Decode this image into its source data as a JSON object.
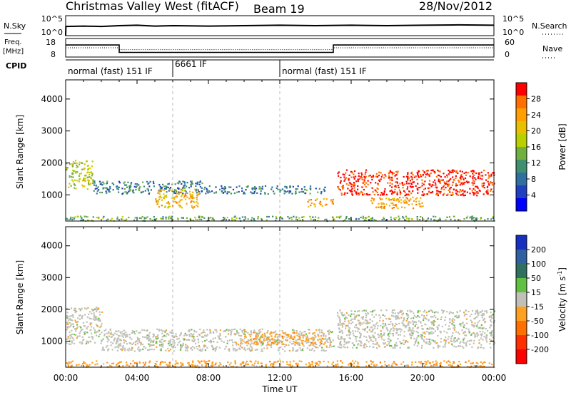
{
  "header": {
    "station_title": "Christmas Valley West (fitACF)",
    "beam": "Beam 19",
    "date": "28/Nov/2012"
  },
  "noise_panel": {
    "label": "N.Sky",
    "right_label": "N.Search",
    "yticks_left": [
      "10^5",
      "10^0"
    ],
    "yticks_right": [
      "10^5",
      "10^0"
    ]
  },
  "freq_panel": {
    "label_line1": "Freq.",
    "label_line2": "[MHz]",
    "right_label": "Nave",
    "yticks_left": [
      "18",
      "8"
    ],
    "yticks_right": [
      "60",
      "0"
    ]
  },
  "cpid": {
    "label": "CPID",
    "segments": [
      {
        "start": 0,
        "end": 6,
        "text": "normal (fast) 151 IF"
      },
      {
        "start": 6,
        "end": 12,
        "text": "6661 IF"
      },
      {
        "start": 12,
        "end": 24,
        "text": "normal (fast) 151 IF"
      }
    ]
  },
  "power_colorbar": {
    "label": "Power [dB]",
    "ticks": [
      "28",
      "24",
      "20",
      "16",
      "12",
      "8",
      "4"
    ],
    "colors": [
      "#ff0000",
      "#ff7000",
      "#ffa000",
      "#e8c000",
      "#b8d000",
      "#70b040",
      "#409070",
      "#3070a0",
      "#2040c0",
      "#0000ff"
    ]
  },
  "velocity_colorbar": {
    "label_main": "Velocity [m s",
    "label_sup": "-1",
    "label_end": "]",
    "ticks": [
      "200",
      "100",
      "50",
      "15",
      "-15",
      "-50",
      "-100",
      "-200"
    ],
    "colors": [
      "#1830c0",
      "#3060a0",
      "#307060",
      "#60c040",
      "#c0c0b8",
      "#ffa020",
      "#ff7000",
      "#ff3000",
      "#ff0000"
    ]
  },
  "chart_data": [
    {
      "type": "line",
      "title": "N.Sky / N.Search",
      "x": [
        0,
        0.01,
        1,
        2,
        3,
        4,
        5,
        6,
        8,
        10,
        12,
        14,
        16,
        18,
        20,
        22,
        24
      ],
      "series": [
        {
          "name": "N.Sky",
          "values": [
            0,
            2.3,
            2.4,
            2.3,
            2.5,
            2.6,
            2.4,
            2.5,
            2.4,
            2.5,
            2.6,
            2.5,
            2.6,
            2.5,
            2.6,
            2.7,
            2.6
          ]
        }
      ],
      "xlim": [
        0,
        24
      ],
      "ylim": [
        0,
        5
      ],
      "yscale": "log"
    },
    {
      "type": "line",
      "title": "Freq. [MHz]",
      "x": [
        0,
        3,
        3,
        15,
        15,
        24
      ],
      "series": [
        {
          "name": "Freq.",
          "values": [
            14.5,
            14.5,
            10.5,
            10.5,
            14.5,
            14.5
          ]
        },
        {
          "name": "Nave",
          "values": [
            30,
            30,
            24,
            24,
            30,
            30
          ]
        }
      ],
      "xlim": [
        0,
        24
      ],
      "ylim": [
        8,
        18
      ],
      "ylim_right": [
        0,
        60
      ]
    },
    {
      "type": "heatmap",
      "title": "Power",
      "xlabel": "",
      "ylabel": "Slant Range [km]",
      "xlim": [
        0,
        24
      ],
      "ylim": [
        180,
        4600
      ],
      "yticks": [
        1000,
        2000,
        3000,
        4000
      ],
      "features": [
        {
          "x": [
            0.0,
            1.5
          ],
          "y": [
            1200,
            2100
          ],
          "level": 16
        },
        {
          "x": [
            1.5,
            8.0
          ],
          "y": [
            1050,
            1450
          ],
          "level": 8
        },
        {
          "x": [
            5.0,
            7.5
          ],
          "y": [
            600,
            1200
          ],
          "level": 20
        },
        {
          "x": [
            8.0,
            14.5
          ],
          "y": [
            1050,
            1300
          ],
          "level": 8
        },
        {
          "x": [
            13.5,
            15.0
          ],
          "y": [
            650,
            900
          ],
          "level": 22
        },
        {
          "x": [
            15.2,
            24.0
          ],
          "y": [
            1000,
            1800
          ],
          "level": 28
        },
        {
          "x": [
            17.0,
            20.0
          ],
          "y": [
            600,
            950
          ],
          "level": 22
        },
        {
          "x": [
            0.0,
            24.0
          ],
          "y": [
            200,
            350
          ],
          "level": 12
        }
      ]
    },
    {
      "type": "heatmap",
      "title": "Velocity",
      "xlabel": "Time UT",
      "ylabel": "Slant Range [km]",
      "xlim": [
        0,
        24
      ],
      "ylim": [
        180,
        4600
      ],
      "yticks": [
        1000,
        2000,
        3000,
        4000
      ],
      "x_tick_labels": [
        "00:00",
        "04:00",
        "08:00",
        "12:00",
        "16:00",
        "20:00",
        "00:00"
      ],
      "features": [
        {
          "x": [
            0.0,
            2.0
          ],
          "y": [
            900,
            2100
          ],
          "level": 0
        },
        {
          "x": [
            2.0,
            15.0
          ],
          "y": [
            700,
            1400
          ],
          "level": 0
        },
        {
          "x": [
            9.5,
            14.5
          ],
          "y": [
            900,
            1300
          ],
          "level": -50
        },
        {
          "x": [
            15.2,
            24.0
          ],
          "y": [
            800,
            2000
          ],
          "level": 0
        },
        {
          "x": [
            0.0,
            24.0
          ],
          "y": [
            200,
            400
          ],
          "level": -50
        }
      ]
    }
  ]
}
